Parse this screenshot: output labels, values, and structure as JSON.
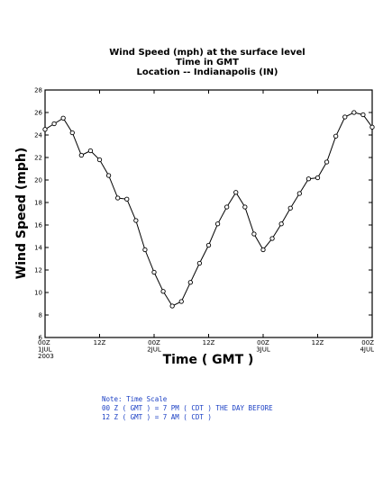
{
  "chart_data": {
    "type": "line",
    "title": [
      "Wind Speed (mph) at the surface level",
      "Time in GMT",
      "Location -- Indianapolis (IN)"
    ],
    "xlabel": "Time ( GMT )",
    "ylabel": "Wind Speed (mph)",
    "ylim": [
      6,
      28
    ],
    "yticks": [
      6,
      8,
      10,
      12,
      14,
      16,
      18,
      20,
      22,
      24,
      26,
      28
    ],
    "xlim": [
      0,
      72
    ],
    "xticks": [
      {
        "x": 0,
        "lines": [
          "00Z",
          "1JUL",
          "2003"
        ]
      },
      {
        "x": 12,
        "lines": [
          "12Z"
        ]
      },
      {
        "x": 24,
        "lines": [
          "00Z",
          "2JUL"
        ]
      },
      {
        "x": 36,
        "lines": [
          "12Z"
        ]
      },
      {
        "x": 48,
        "lines": [
          "00Z",
          "3JUL"
        ]
      },
      {
        "x": 60,
        "lines": [
          "12Z"
        ]
      },
      {
        "x": 72,
        "lines": [
          "00Z",
          "4JUL"
        ]
      }
    ],
    "series": [
      {
        "marker": "open-circle",
        "color": "#000000",
        "x": [
          0,
          2,
          4,
          6,
          8,
          10,
          12,
          14,
          16,
          18,
          20,
          22,
          24,
          26,
          28,
          30,
          32,
          34,
          36,
          38,
          40,
          42,
          44,
          46,
          48,
          50,
          52,
          54,
          56,
          58,
          60,
          62,
          64,
          66,
          68,
          70,
          72
        ],
        "values": [
          24.5,
          25.0,
          25.5,
          24.2,
          22.2,
          22.6,
          21.8,
          20.4,
          18.4,
          18.3,
          16.4,
          13.8,
          11.8,
          10.1,
          8.8,
          9.2,
          10.9,
          12.6,
          14.2,
          16.1,
          17.6,
          18.9,
          17.6,
          15.2,
          13.8,
          14.8,
          16.1,
          17.5,
          18.8,
          20.1,
          20.2,
          21.6,
          23.9,
          25.6,
          26.0,
          25.8,
          24.7
        ]
      }
    ],
    "grid": false
  },
  "note": {
    "lines": [
      "Note: Time Scale",
      "00 Z ( GMT ) = 7 PM ( CDT ) THE DAY BEFORE",
      "12 Z ( GMT ) = 7 AM ( CDT )"
    ],
    "color": "#1a3fc4"
  }
}
